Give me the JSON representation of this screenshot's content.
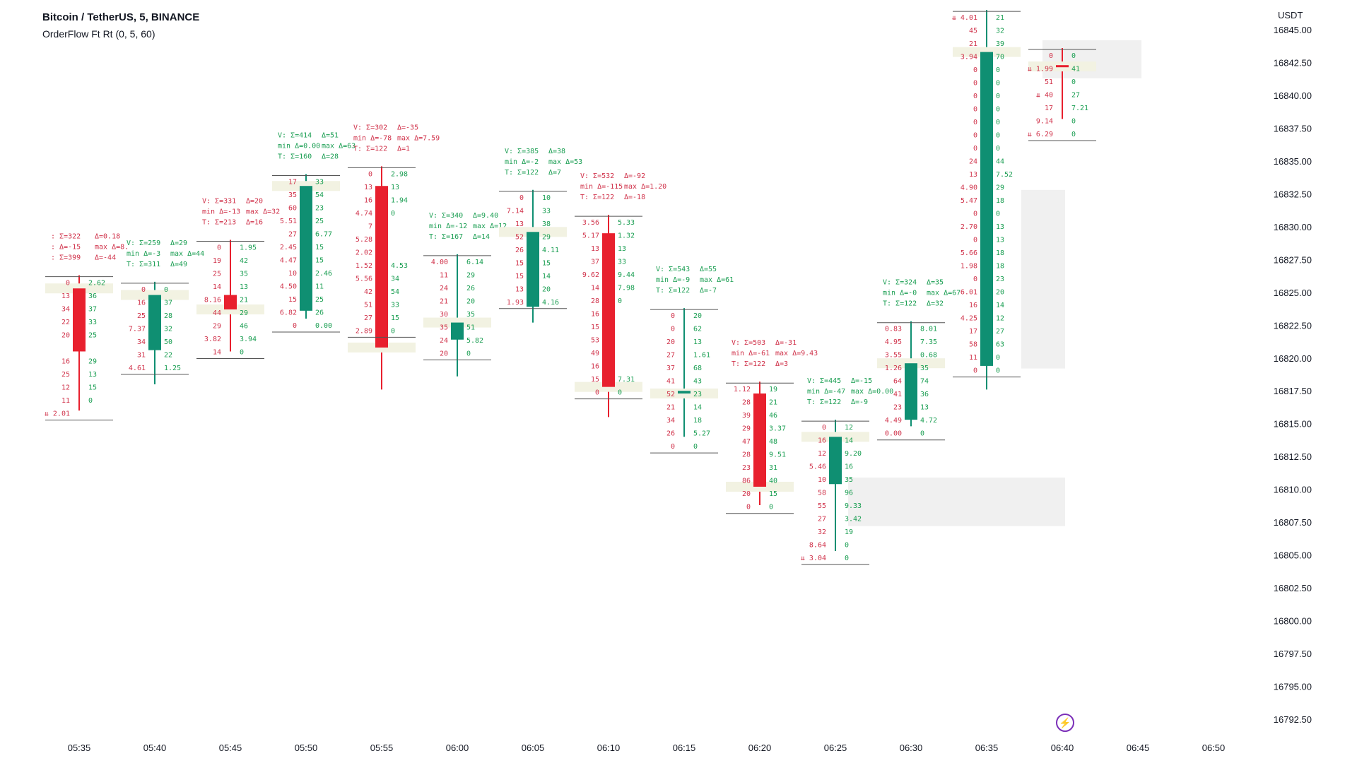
{
  "header": {
    "symbol": "Bitcoin / TetherUS, 5, BINANCE",
    "indicator": "OrderFlow Ft Rt (0, 5, 60)",
    "unit": "USDT"
  },
  "icons": {
    "live": "lightning-icon"
  },
  "colors": {
    "up": "#0f8f72",
    "down": "#e8202e",
    "up_text": "#1a9e52",
    "down_text": "#d0324a",
    "highlight": "#f2f2e2",
    "zone": "#f0f0f0",
    "grid": "#555555"
  },
  "chart_data": {
    "type": "candlestick",
    "x_ticks": [
      "05:35",
      "05:40",
      "05:45",
      "05:50",
      "05:55",
      "06:00",
      "06:05",
      "06:10",
      "06:15",
      "06:20",
      "06:25",
      "06:30",
      "06:35",
      "06:40",
      "06:45",
      "06:50"
    ],
    "y_ticks": [
      "16845.00",
      "16842.50",
      "16840.00",
      "16837.50",
      "16835.00",
      "16832.50",
      "16830.00",
      "16827.50",
      "16825.00",
      "16822.50",
      "16820.00",
      "16817.50",
      "16815.00",
      "16812.50",
      "16810.00",
      "16807.50",
      "16805.00",
      "16802.50",
      "16800.00",
      "16797.50",
      "16795.00",
      "16792.50"
    ],
    "ylim": [
      16792.5,
      16845.0
    ],
    "grid": false,
    "candles": [
      {
        "time": "05:35",
        "open": 16820.5,
        "close": 16825.3,
        "high": 16826.3,
        "low": 16816.0,
        "dir": "down",
        "stats": [
          [
            ": Σ=322",
            ": Δ=-15",
            ": Σ=399"
          ],
          [
            "Δ=0.18",
            "max Δ=8.",
            "Δ=-44"
          ]
        ],
        "bid": [
          "0",
          "13",
          "34",
          "22",
          "20",
          "",
          "16",
          "25",
          "12",
          "11",
          "⇊ 2.01"
        ],
        "ask": [
          "2.62",
          "36",
          "37",
          "33",
          "25",
          "",
          "29",
          "13",
          "15",
          "0"
        ]
      },
      {
        "time": "05:40",
        "open": 16820.6,
        "close": 16824.8,
        "high": 16825.8,
        "low": 16818.0,
        "dir": "up",
        "stats": [
          [
            "V: Σ=259",
            "min Δ=-3",
            "T: Σ=311"
          ],
          [
            "Δ=29",
            "max Δ=44",
            "Δ=49"
          ]
        ],
        "bid": [
          "0",
          "16",
          "25",
          "7.37",
          "34",
          "31",
          "4.61"
        ],
        "ask": [
          "0",
          "37",
          "28",
          "32",
          "50",
          "22",
          "1.25"
        ]
      },
      {
        "time": "05:45",
        "open": 16824.8,
        "close": 16823.7,
        "high": 16829.0,
        "low": 16820.5,
        "dir": "down",
        "stats": [
          [
            "V: Σ=331",
            "min Δ=-13",
            "T: Σ=213"
          ],
          [
            "Δ=20",
            "max Δ=32",
            "Δ=16"
          ]
        ],
        "bid": [
          "0",
          "19",
          "25",
          "14",
          "8.16",
          "44",
          "29",
          "3.82",
          "14"
        ],
        "ask": [
          "1.95",
          "42",
          "35",
          "13",
          "21",
          "29",
          "46",
          "3.94",
          "0"
        ]
      },
      {
        "time": "05:50",
        "open": 16823.6,
        "close": 16833.1,
        "high": 16834.0,
        "low": 16823.0,
        "dir": "up",
        "stats": [
          [
            "V: Σ=414",
            "min Δ=0.00",
            "T: Σ=160"
          ],
          [
            "Δ=51",
            "max Δ=63",
            "Δ=28"
          ]
        ],
        "bid": [
          "17",
          "35",
          "60",
          "5.51",
          "27",
          "2.45",
          "4.47",
          "10",
          "4.50",
          "15",
          "6.82",
          "0"
        ],
        "ask": [
          "33",
          "54",
          "23",
          "25",
          "6.77",
          "15",
          "15",
          "2.46",
          "11",
          "25",
          "26",
          "0.00"
        ]
      },
      {
        "time": "05:55",
        "open": 16833.1,
        "close": 16820.8,
        "high": 16834.6,
        "low": 16817.6,
        "dir": "down",
        "stats": [
          [
            "V: Σ=302",
            "min Δ=-78",
            "T: Σ=122"
          ],
          [
            "Δ=-35",
            "max Δ=7.59",
            "Δ=1"
          ]
        ],
        "bid": [
          "0",
          "13",
          "16",
          "4.74",
          "7",
          "5.28",
          "2.02",
          "1.52",
          "5.56",
          "42",
          "51",
          "27",
          "2.89"
        ],
        "ask": [
          "2.98",
          "13",
          "1.94",
          "0",
          "",
          "",
          "",
          "4.53",
          "34",
          "54",
          "33",
          "15",
          "0"
        ]
      },
      {
        "time": "06:00",
        "open": 16821.4,
        "close": 16822.7,
        "high": 16827.9,
        "low": 16818.6,
        "dir": "up",
        "stats": [
          [
            "V: Σ=340",
            "min Δ=-12",
            "T: Σ=167"
          ],
          [
            "Δ=9.40",
            "max Δ=12",
            "Δ=14"
          ]
        ],
        "bid": [
          "4.00",
          "11",
          "24",
          "21",
          "30",
          "35",
          "24",
          "20"
        ],
        "ask": [
          "6.14",
          "29",
          "26",
          "20",
          "35",
          "51",
          "5.82",
          "0"
        ]
      },
      {
        "time": "06:05",
        "open": 16823.9,
        "close": 16829.6,
        "high": 16832.8,
        "low": 16822.7,
        "dir": "up",
        "stats": [
          [
            "V: Σ=385",
            "min Δ=-2",
            "T: Σ=122"
          ],
          [
            "Δ=38",
            "max Δ=53",
            "Δ=7"
          ]
        ],
        "bid": [
          "0",
          "7.14",
          "13",
          "52",
          "26",
          "15",
          "15",
          "13",
          "1.93"
        ],
        "ask": [
          "10",
          "33",
          "38",
          "29",
          "4.11",
          "15",
          "14",
          "20",
          "4.16"
        ]
      },
      {
        "time": "06:10",
        "open": 16829.5,
        "close": 16817.8,
        "high": 16830.9,
        "low": 16815.5,
        "dir": "down",
        "stats": [
          [
            "V: Σ=532",
            "min Δ=-115",
            "T: Σ=122"
          ],
          [
            "Δ=-92",
            "max Δ=1.20",
            "Δ=-18"
          ]
        ],
        "bid": [
          "3.56",
          "5.17",
          "13",
          "37",
          "9.62",
          "14",
          "28",
          "16",
          "15",
          "53",
          "49",
          "16",
          "15",
          "0"
        ],
        "ask": [
          "5.33",
          "1.32",
          "13",
          "33",
          "9.44",
          "7.98",
          "0",
          "",
          "",
          "",
          "",
          "",
          "7.31",
          "0"
        ]
      },
      {
        "time": "06:15",
        "open": 16817.5,
        "close": 16817.3,
        "high": 16823.8,
        "low": 16814.0,
        "dir": "up",
        "stats": [
          [
            "V: Σ=543",
            "min Δ=-9",
            "T: Σ=122"
          ],
          [
            "Δ=55",
            "max Δ=61",
            "Δ=-7"
          ]
        ],
        "bid": [
          "0",
          "0",
          "20",
          "27",
          "37",
          "41",
          "52",
          "21",
          "34",
          "26",
          "0"
        ],
        "ask": [
          "20",
          "62",
          "13",
          "1.61",
          "68",
          "43",
          "23",
          "14",
          "18",
          "5.27",
          "0"
        ]
      },
      {
        "time": "06:20",
        "open": 16817.3,
        "close": 16810.2,
        "high": 16818.2,
        "low": 16808.8,
        "dir": "down",
        "stats": [
          [
            "V: Σ=503",
            "min Δ=-61",
            "T: Σ=122"
          ],
          [
            "Δ=-31",
            "max Δ=9.43",
            "Δ=3"
          ]
        ],
        "bid": [
          "1.12",
          "28",
          "39",
          "29",
          "47",
          "28",
          "23",
          "86",
          "20",
          "0"
        ],
        "ask": [
          "19",
          "21",
          "46",
          "3.37",
          "48",
          "9.51",
          "31",
          "40",
          "15",
          "0"
        ]
      },
      {
        "time": "06:25",
        "open": 16810.4,
        "close": 16814.0,
        "high": 16815.3,
        "low": 16805.3,
        "dir": "up",
        "stats": [
          [
            "V: Σ=445",
            "min Δ=-47",
            "T: Σ=122"
          ],
          [
            "Δ=-15",
            "max Δ=0.00",
            "Δ=-9"
          ]
        ],
        "bid": [
          "0",
          "16",
          "12",
          "5.46",
          "10",
          "58",
          "55",
          "27",
          "32",
          "8.64",
          "⇊ 3.04"
        ],
        "ask": [
          "12",
          "14",
          "9.20",
          "16",
          "35",
          "96",
          "9.33",
          "3.42",
          "19",
          "0",
          "0"
        ]
      },
      {
        "time": "06:30",
        "open": 16815.3,
        "close": 16819.6,
        "high": 16822.8,
        "low": 16814.8,
        "dir": "up",
        "stats": [
          [
            "V: Σ=324",
            "min Δ=-0",
            "T: Σ=122"
          ],
          [
            "Δ=35",
            "max Δ=67",
            "Δ=32"
          ]
        ],
        "bid": [
          "0.83",
          "4.95",
          "3.55",
          "1.26",
          "64",
          "41",
          "23",
          "4.49",
          "0.00"
        ],
        "ask": [
          "8.01",
          "7.35",
          "0.68",
          "35",
          "74",
          "36",
          "13",
          "4.72",
          "0"
        ]
      },
      {
        "time": "06:35",
        "open": 16819.4,
        "close": 16843.3,
        "high": 16846.5,
        "low": 16817.6,
        "dir": "up",
        "stats": [],
        "bid": [
          "⇊ 4.01",
          "45",
          "21",
          "3.94",
          "0",
          "0",
          "0",
          "0",
          "0",
          "0",
          "0",
          "24",
          "13",
          "4.90",
          "5.47",
          "0",
          "2.70",
          "0",
          "5.66",
          "1.98",
          "0",
          "6.01",
          "16",
          "4.25",
          "17",
          "58",
          "11",
          "0"
        ],
        "ask": [
          "21",
          "32",
          "39",
          "70",
          "0",
          "0",
          "0",
          "0",
          "0",
          "0",
          "0",
          "44",
          "7.52",
          "29",
          "18",
          "0",
          "13",
          "13",
          "18",
          "18",
          "23",
          "20",
          "14",
          "12",
          "27",
          "63",
          "0",
          "0"
        ]
      },
      {
        "time": "06:40",
        "open": 16842.3,
        "close": 16842.2,
        "high": 16843.6,
        "low": 16838.2,
        "dir": "down",
        "stats": [],
        "bid": [
          "0",
          "⇊ 1.99",
          "51",
          "⇊ 40",
          "17",
          "9.14",
          "⇊ 6.29"
        ],
        "ask": [
          "0",
          "41",
          "0",
          "27",
          "7.21",
          "0",
          "0"
        ]
      }
    ]
  }
}
